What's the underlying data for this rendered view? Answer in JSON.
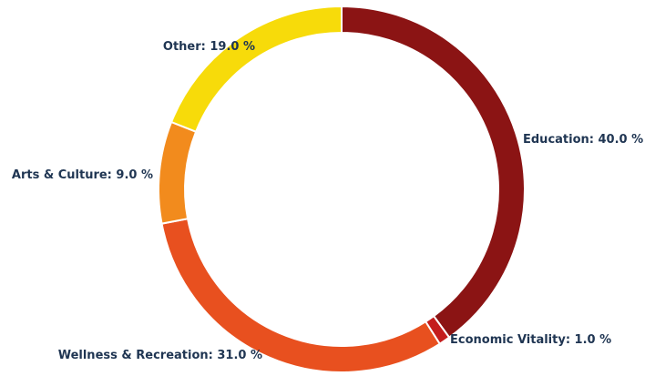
{
  "chart_data": {
    "type": "pie",
    "style": "donut",
    "title": "",
    "slices": [
      {
        "name": "Education",
        "value": 40.0,
        "label": "Education: 40.0 %",
        "color": "#8b1414"
      },
      {
        "name": "Economic Vitality",
        "value": 1.0,
        "label": "Economic Vitality: 1.0 %",
        "color": "#c41d1d"
      },
      {
        "name": "Wellness & Recreation",
        "value": 31.0,
        "label": "Wellness & Recreation: 31.0 %",
        "color": "#e8501f"
      },
      {
        "name": "Arts & Culture",
        "value": 9.0,
        "label": "Arts & Culture: 9.0 %",
        "color": "#f28b1d"
      },
      {
        "name": "Other",
        "value": 19.0,
        "label": "Other: 19.0 %",
        "color": "#f7db0a"
      }
    ]
  }
}
